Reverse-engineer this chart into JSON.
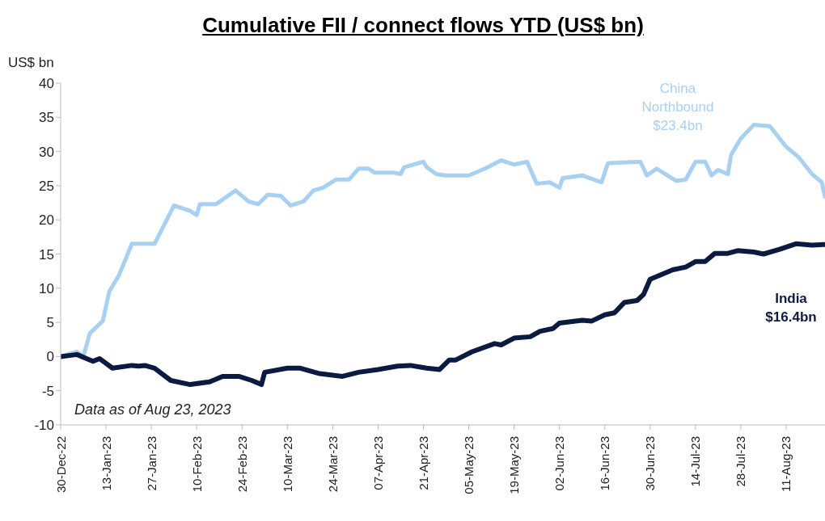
{
  "chart_data": {
    "type": "line",
    "title": "Cumulative FII / connect flows YTD (US$ bn)",
    "ylabel": "US$ bn",
    "annotations": [
      "Data as of Aug 23, 2023",
      "China\nNorthbound\n$23.4bn",
      "India\n$16.4bn"
    ],
    "xlim": [
      "2022-12-30",
      "2023-08-23"
    ],
    "xticks": [
      {
        "value": "2022-12-30",
        "label": "30-Dec-22"
      },
      {
        "value": "2023-01-13",
        "label": "13-Jan-23"
      },
      {
        "value": "2023-01-27",
        "label": "27-Jan-23"
      },
      {
        "value": "2023-02-10",
        "label": "10-Feb-23"
      },
      {
        "value": "2023-02-24",
        "label": "24-Feb-23"
      },
      {
        "value": "2023-03-10",
        "label": "10-Mar-23"
      },
      {
        "value": "2023-03-24",
        "label": "24-Mar-23"
      },
      {
        "value": "2023-04-07",
        "label": "07-Apr-23"
      },
      {
        "value": "2023-04-21",
        "label": "21-Apr-23"
      },
      {
        "value": "2023-05-05",
        "label": "05-May-23"
      },
      {
        "value": "2023-05-19",
        "label": "19-May-23"
      },
      {
        "value": "2023-06-02",
        "label": "02-Jun-23"
      },
      {
        "value": "2023-06-16",
        "label": "16-Jun-23"
      },
      {
        "value": "2023-06-30",
        "label": "30-Jun-23"
      },
      {
        "value": "2023-07-14",
        "label": "14-Jul-23"
      },
      {
        "value": "2023-07-28",
        "label": "28-Jul-23"
      },
      {
        "value": "2023-08-11",
        "label": "11-Aug-23"
      }
    ],
    "ylim": [
      -10,
      40
    ],
    "yticks": [
      -10,
      -5,
      0,
      5,
      10,
      15,
      20,
      25,
      30,
      35,
      40
    ],
    "grid": false,
    "marker": "none",
    "line_style": "solid",
    "series": [
      {
        "color": "#a8d0f2",
        "x": [
          "2022-12-30",
          "2023-01-04",
          "2023-01-06",
          "2023-01-08",
          "2023-01-12",
          "2023-01-14",
          "2023-01-17",
          "2023-01-21",
          "2023-01-28",
          "2023-02-03",
          "2023-02-08",
          "2023-02-10",
          "2023-02-11",
          "2023-02-16",
          "2023-02-22",
          "2023-02-26",
          "2023-03-01",
          "2023-03-04",
          "2023-03-08",
          "2023-03-11",
          "2023-03-15",
          "2023-03-18",
          "2023-03-21",
          "2023-03-25",
          "2023-03-29",
          "2023-04-01",
          "2023-04-04",
          "2023-04-06",
          "2023-04-12",
          "2023-04-14",
          "2023-04-15",
          "2023-04-21",
          "2023-04-22",
          "2023-04-25",
          "2023-04-28",
          "2023-05-05",
          "2023-05-10",
          "2023-05-15",
          "2023-05-19",
          "2023-05-23",
          "2023-05-26",
          "2023-05-30",
          "2023-06-02",
          "2023-06-03",
          "2023-06-09",
          "2023-06-15",
          "2023-06-17",
          "2023-06-27",
          "2023-06-29",
          "2023-07-02",
          "2023-07-08",
          "2023-07-11",
          "2023-07-14",
          "2023-07-17",
          "2023-07-19",
          "2023-07-21",
          "2023-07-24",
          "2023-07-25",
          "2023-07-28",
          "2023-08-01",
          "2023-08-06",
          "2023-08-11",
          "2023-08-15",
          "2023-08-19",
          "2023-08-22",
          "2023-08-23"
        ],
        "values": [
          0,
          0.7,
          0,
          3.4,
          5.2,
          9.5,
          11.9,
          16.5,
          16.5,
          22.1,
          21.3,
          20.7,
          22.3,
          22.3,
          24.3,
          22.7,
          22.3,
          23.7,
          23.5,
          22.1,
          22.7,
          24.3,
          24.7,
          25.9,
          25.9,
          27.5,
          27.5,
          26.9,
          26.9,
          26.7,
          27.7,
          28.5,
          27.7,
          26.7,
          26.5,
          26.5,
          27.5,
          28.7,
          28.1,
          28.5,
          25.3,
          25.5,
          24.7,
          26.1,
          26.5,
          25.5,
          28.3,
          28.5,
          26.5,
          27.5,
          25.7,
          25.9,
          28.5,
          28.5,
          26.5,
          27.3,
          26.7,
          29.5,
          31.9,
          33.9,
          33.7,
          30.7,
          29.1,
          26.7,
          25.5,
          23.4
        ]
      },
      {
        "color": "#0b1a40",
        "x": [
          "2022-12-30",
          "2023-01-04",
          "2023-01-07",
          "2023-01-09",
          "2023-01-11",
          "2023-01-15",
          "2023-01-21",
          "2023-01-23",
          "2023-01-25",
          "2023-01-28",
          "2023-02-02",
          "2023-02-08",
          "2023-02-14",
          "2023-02-18",
          "2023-02-23",
          "2023-02-27",
          "2023-03-02",
          "2023-03-03",
          "2023-03-10",
          "2023-03-14",
          "2023-03-20",
          "2023-03-27",
          "2023-04-01",
          "2023-04-07",
          "2023-04-13",
          "2023-04-17",
          "2023-04-22",
          "2023-04-26",
          "2023-04-29",
          "2023-05-01",
          "2023-05-06",
          "2023-05-13",
          "2023-05-15",
          "2023-05-19",
          "2023-05-24",
          "2023-05-27",
          "2023-05-31",
          "2023-06-02",
          "2023-06-09",
          "2023-06-12",
          "2023-06-16",
          "2023-06-19",
          "2023-06-22",
          "2023-06-26",
          "2023-06-28",
          "2023-06-30",
          "2023-07-03",
          "2023-07-07",
          "2023-07-11",
          "2023-07-14",
          "2023-07-17",
          "2023-07-20",
          "2023-07-24",
          "2023-07-27",
          "2023-08-01",
          "2023-08-04",
          "2023-08-09",
          "2023-08-14",
          "2023-08-19",
          "2023-08-23"
        ],
        "values": [
          0,
          0.3,
          -0.3,
          -0.7,
          -0.3,
          -1.7,
          -1.3,
          -1.4,
          -1.3,
          -1.7,
          -3.5,
          -4.1,
          -3.7,
          -2.9,
          -2.9,
          -3.5,
          -4.1,
          -2.3,
          -1.7,
          -1.7,
          -2.5,
          -2.9,
          -2.3,
          -1.9,
          -1.4,
          -1.3,
          -1.7,
          -1.9,
          -0.5,
          -0.5,
          0.7,
          1.9,
          1.7,
          2.7,
          2.9,
          3.7,
          4.1,
          4.9,
          5.3,
          5.2,
          6.1,
          6.4,
          7.9,
          8.2,
          9.1,
          11.3,
          11.9,
          12.7,
          13.1,
          13.9,
          13.9,
          15.1,
          15.1,
          15.5,
          15.3,
          15.0,
          15.7,
          16.5,
          16.3,
          16.4
        ]
      }
    ]
  }
}
